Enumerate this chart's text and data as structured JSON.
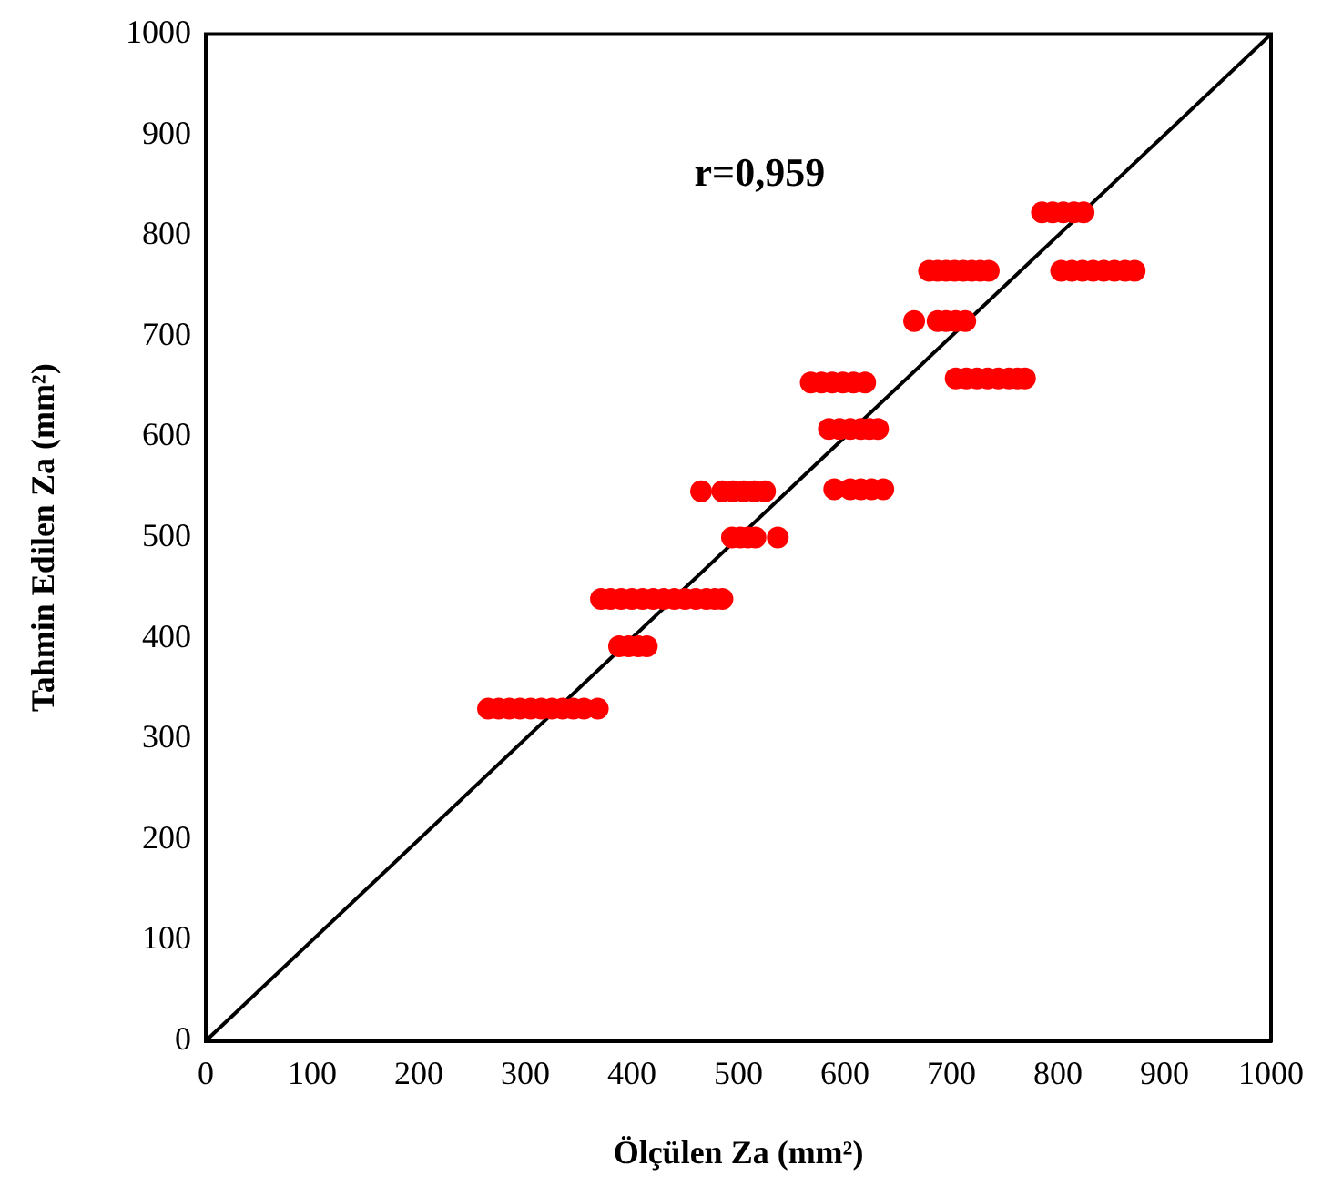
{
  "chart_data": {
    "type": "scatter",
    "xlabel": "Ölçülen Za (mm²)",
    "ylabel": "Tahmin Edilen Za (mm²)",
    "annotations": [
      "r=0,959"
    ],
    "xlim": [
      0,
      1000
    ],
    "ylim": [
      0,
      1000
    ],
    "xticks": [
      0,
      100,
      200,
      300,
      400,
      500,
      600,
      700,
      800,
      900,
      1000
    ],
    "yticks": [
      0,
      100,
      200,
      300,
      400,
      500,
      600,
      700,
      800,
      900,
      1000
    ],
    "grid": false,
    "legend": false,
    "marker": "circle",
    "series": [
      {
        "color": "#ff0000",
        "x": [
          265,
          275,
          285,
          295,
          305,
          315,
          325,
          335,
          345,
          355,
          368,
          388,
          397,
          406,
          414,
          371,
          380,
          390,
          400,
          410,
          420,
          430,
          440,
          450,
          460,
          470,
          478,
          485,
          465,
          485,
          495,
          505,
          515,
          525,
          494,
          502,
          509,
          516,
          537,
          590,
          605,
          615,
          625,
          636,
          568,
          578,
          588,
          598,
          608,
          619,
          585,
          595,
          605,
          615,
          623,
          631,
          704,
          714,
          724,
          734,
          744,
          754,
          762,
          769,
          665,
          687,
          695,
          704,
          713,
          679,
          687,
          695,
          703,
          711,
          719,
          727,
          735,
          803,
          813,
          823,
          833,
          843,
          853,
          863,
          872,
          785,
          795,
          805,
          815,
          824
        ],
        "values": [
          330,
          330,
          330,
          330,
          330,
          330,
          330,
          330,
          330,
          330,
          330,
          392,
          392,
          392,
          392,
          439,
          439,
          439,
          439,
          439,
          439,
          439,
          439,
          439,
          439,
          439,
          439,
          439,
          546,
          546,
          546,
          546,
          546,
          546,
          500,
          500,
          500,
          500,
          500,
          548,
          548,
          548,
          548,
          548,
          654,
          654,
          654,
          654,
          654,
          654,
          608,
          608,
          608,
          608,
          608,
          608,
          658,
          658,
          658,
          658,
          658,
          658,
          658,
          658,
          715,
          715,
          715,
          715,
          715,
          765,
          765,
          765,
          765,
          765,
          765,
          765,
          765,
          765,
          765,
          765,
          765,
          765,
          765,
          765,
          765,
          823,
          823,
          823,
          823,
          823
        ]
      },
      {
        "type": "line",
        "color": "#000000",
        "x": [
          0,
          1000
        ],
        "values": [
          0,
          1000
        ],
        "marker": "none",
        "line_style": "solid"
      }
    ]
  }
}
